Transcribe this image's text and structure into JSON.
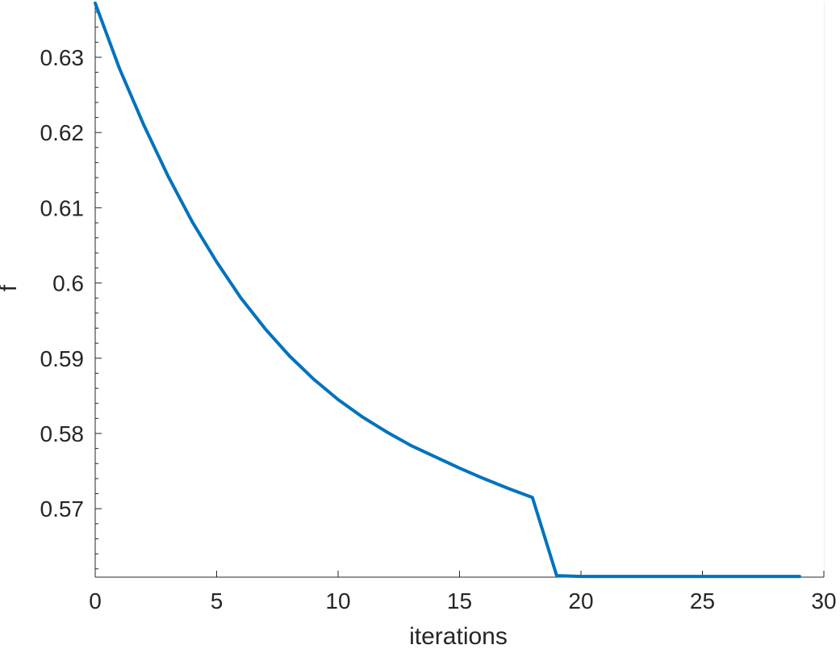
{
  "chart_data": {
    "type": "line",
    "title": "",
    "xlabel": "iterations",
    "ylabel": "f",
    "xlim": [
      0,
      30
    ],
    "ylim": [
      0.5609,
      0.6374
    ],
    "xticks": [
      0,
      5,
      10,
      15,
      20,
      25,
      30
    ],
    "xtick_labels": [
      "0",
      "5",
      "10",
      "15",
      "20",
      "25",
      "30"
    ],
    "yticks": [
      0.57,
      0.58,
      0.59,
      0.6,
      0.61,
      0.62,
      0.63
    ],
    "ytick_labels": [
      "0.57",
      "0.58",
      "0.59",
      "0.6",
      "0.61",
      "0.62",
      "0.63"
    ],
    "grid": true,
    "minor_grid": true,
    "series": [
      {
        "color": "#0072BD",
        "x": [
          0,
          1,
          2,
          3,
          4,
          5,
          6,
          7,
          8,
          9,
          10,
          11,
          12,
          13,
          14,
          15,
          16,
          17,
          18,
          19,
          20,
          21,
          22,
          23,
          24,
          25,
          26,
          27,
          28,
          29
        ],
        "y": [
          0.6372,
          0.6285,
          0.621,
          0.6142,
          0.6081,
          0.6028,
          0.598,
          0.5939,
          0.5903,
          0.5872,
          0.5845,
          0.5822,
          0.5802,
          0.5784,
          0.5769,
          0.5754,
          0.574,
          0.5727,
          0.5715,
          0.5611,
          0.561,
          0.561,
          0.561,
          0.561,
          0.561,
          0.561,
          0.561,
          0.561,
          0.561,
          0.561
        ]
      }
    ]
  }
}
